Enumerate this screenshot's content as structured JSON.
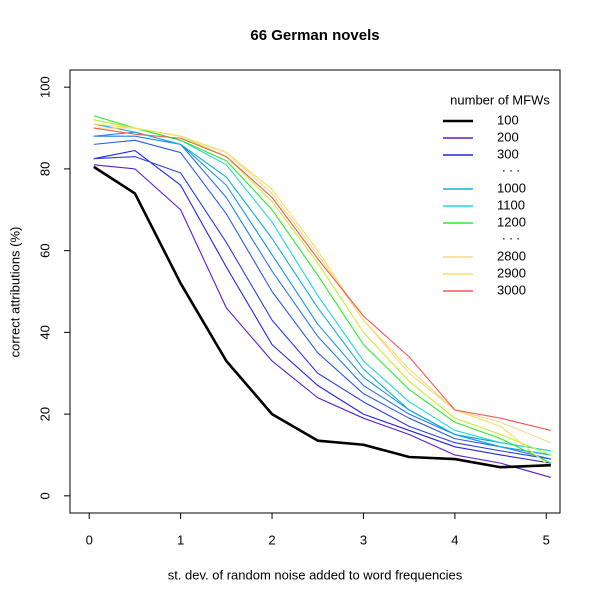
{
  "chart_data": {
    "type": "line",
    "title": "66 German novels",
    "xlabel": "st. dev. of random noise added to word frequencies",
    "ylabel": "correct attributions (%)",
    "x": [
      0.05,
      0.5,
      1,
      1.5,
      2,
      2.5,
      3,
      3.5,
      4,
      4.5,
      5.05
    ],
    "xlim": [
      -0.21,
      5.15
    ],
    "xticks": [
      0,
      1,
      2,
      3,
      4,
      5
    ],
    "ylim": [
      -4.2,
      104.2
    ],
    "yticks": [
      0,
      20,
      40,
      60,
      80,
      100
    ],
    "legend_title": "number of MFWs",
    "legend_position": "top-right",
    "legend_ellipsis": [
      ". . .",
      ". . ."
    ],
    "series": [
      {
        "name": "100",
        "color": "#000000",
        "values": [
          80.5,
          74,
          52,
          33,
          20,
          13.5,
          12.5,
          9.5,
          9,
          7,
          7.5
        ]
      },
      {
        "name": "200",
        "color": "#5a1fd0",
        "values": [
          81,
          80,
          70,
          46,
          33,
          24,
          19,
          15,
          10,
          8,
          4.5
        ]
      },
      {
        "name": "300",
        "color": "#2626dc",
        "values": [
          82.5,
          84.5,
          76,
          56,
          37,
          27,
          20,
          16,
          12,
          10,
          8
        ]
      },
      {
        "color": "#2a3ee0",
        "values": [
          82.5,
          83,
          79,
          62,
          43,
          30,
          23,
          17,
          13,
          11,
          9
        ]
      },
      {
        "color": "#2c5ce2",
        "values": [
          86,
          87,
          84,
          69,
          50,
          35,
          25,
          19,
          14,
          12,
          10
        ]
      },
      {
        "color": "#2c78e0",
        "values": [
          88,
          88,
          86,
          73,
          55,
          39,
          27,
          20,
          15,
          12,
          9
        ]
      },
      {
        "color": "#2092e0",
        "values": [
          88,
          89,
          86,
          76,
          59,
          42,
          29,
          21,
          15,
          13,
          11
        ]
      },
      {
        "name": "1000",
        "color": "#10b0e0",
        "values": [
          91,
          89,
          86,
          78,
          63,
          46,
          31,
          21,
          15,
          12,
          10
        ]
      },
      {
        "name": "1100",
        "color": "#20dada",
        "values": [
          92,
          90,
          87,
          81,
          67,
          49,
          33,
          23,
          16,
          13,
          11
        ]
      },
      {
        "name": "1200",
        "color": "#30e830",
        "values": [
          93,
          90,
          87,
          82,
          70,
          54,
          37,
          26,
          18,
          14,
          8
        ]
      },
      {
        "color": "#c8ee30",
        "values": [
          92,
          90,
          88,
          83,
          72,
          57,
          40,
          28,
          19,
          15,
          10
        ]
      },
      {
        "name": "2800",
        "color": "#f2d890",
        "values": [
          90,
          90,
          88,
          84,
          74,
          59,
          43,
          30,
          21,
          18,
          13
        ]
      },
      {
        "name": "2900",
        "color": "#f5e060",
        "values": [
          91,
          90,
          88,
          84,
          75,
          60,
          43,
          31,
          21,
          17,
          7
        ]
      },
      {
        "name": "3000",
        "color": "#f05a5a",
        "values": [
          90,
          88.5,
          87.5,
          83,
          73,
          58,
          44,
          34,
          21,
          19,
          16
        ]
      }
    ]
  }
}
